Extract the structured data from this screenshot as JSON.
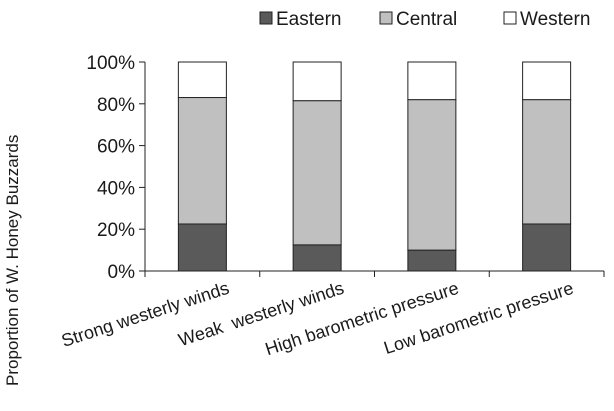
{
  "chart_data": {
    "type": "bar",
    "stacked": true,
    "categories": [
      "Strong westerly winds",
      "Weak  westerly winds",
      "High barometric pressure",
      "Low barometric pressure"
    ],
    "series": [
      {
        "name": "Eastern",
        "color": "#5a5a5a",
        "values": [
          22.5,
          12.5,
          10,
          22.5
        ]
      },
      {
        "name": "Central",
        "color": "#c0c0c0",
        "values": [
          60.5,
          69,
          72,
          59.5
        ]
      },
      {
        "name": "Western",
        "color": "#ffffff",
        "values": [
          17,
          18.5,
          18,
          18
        ]
      }
    ],
    "ylabel": "Proportion of W. Honey Buzzards",
    "xlabel": "",
    "title": "",
    "ylim": [
      0,
      100
    ],
    "yticks": [
      "0%",
      "20%",
      "40%",
      "60%",
      "80%",
      "100%"
    ],
    "ytick_values": [
      0,
      20,
      40,
      60,
      80,
      100
    ],
    "legend_position": "top",
    "grid": false
  }
}
